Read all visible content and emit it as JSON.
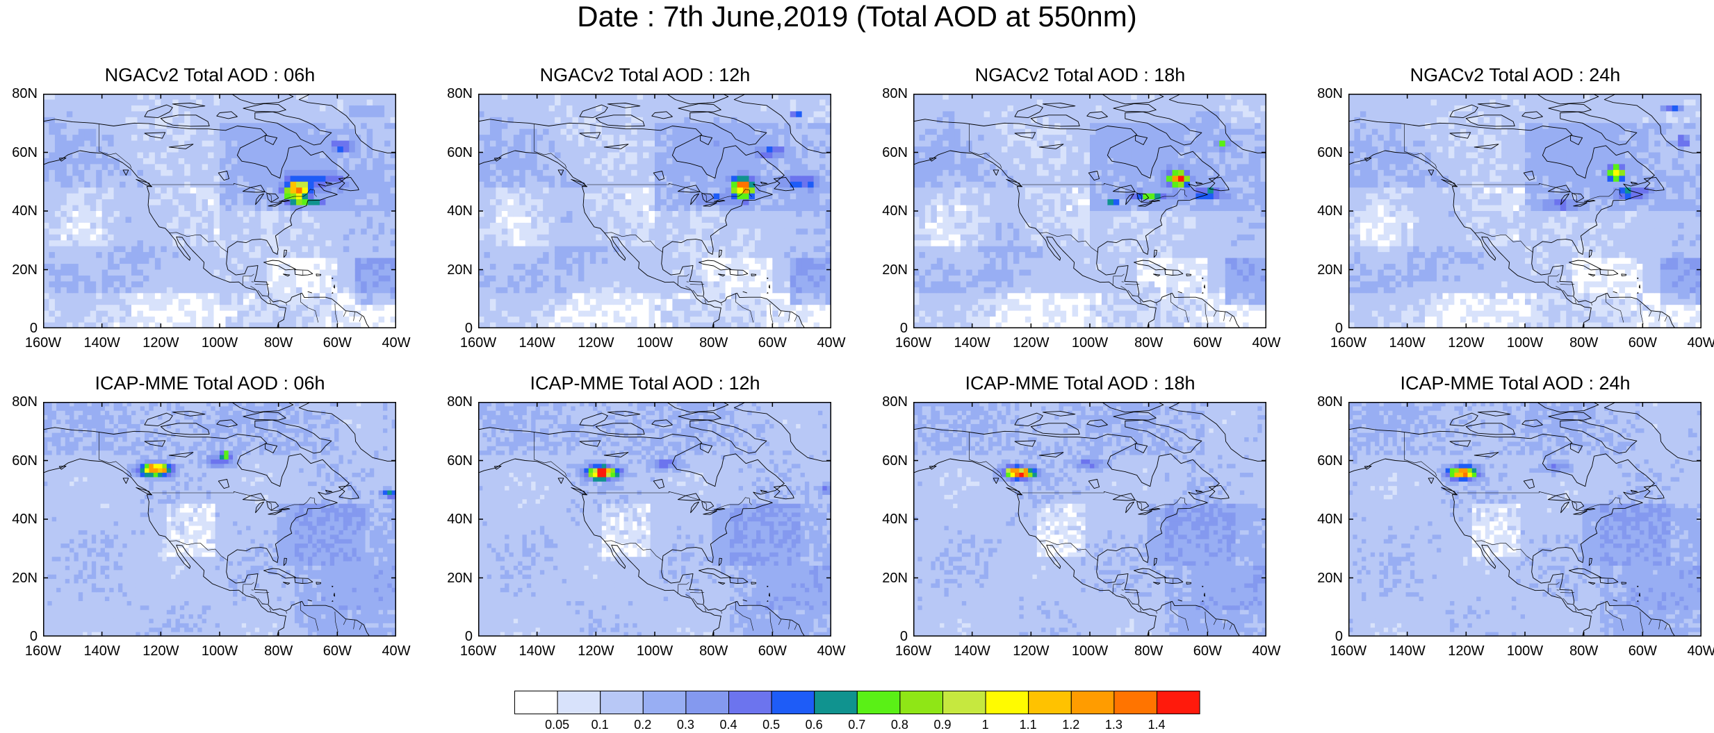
{
  "title": "Date : 7th June,2019 (Total AOD at 550nm)",
  "panels": [
    {
      "title": "NGACv2 Total AOD : 06h",
      "model": "ngac",
      "hour": "06"
    },
    {
      "title": "NGACv2 Total AOD : 12h",
      "model": "ngac",
      "hour": "12"
    },
    {
      "title": "NGACv2 Total AOD : 18h",
      "model": "ngac",
      "hour": "18"
    },
    {
      "title": "NGACv2 Total AOD : 24h",
      "model": "ngac",
      "hour": "24"
    },
    {
      "title": "ICAP-MME Total AOD : 06h",
      "model": "icap",
      "hour": "06"
    },
    {
      "title": "ICAP-MME Total AOD : 12h",
      "model": "icap",
      "hour": "12"
    },
    {
      "title": "ICAP-MME Total AOD : 18h",
      "model": "icap",
      "hour": "18"
    },
    {
      "title": "ICAP-MME Total AOD : 24h",
      "model": "icap",
      "hour": "24"
    }
  ],
  "lat_labels": [
    "80N",
    "60N",
    "40N",
    "20N",
    "0"
  ],
  "lon_labels": [
    "160W",
    "140W",
    "120W",
    "100W",
    "80W",
    "60W",
    "40W"
  ],
  "colorbar": {
    "labels": [
      "0.05",
      "0.1",
      "0.2",
      "0.3",
      "0.4",
      "0.5",
      "0.6",
      "0.7",
      "0.8",
      "0.9",
      "1",
      "1.1",
      "1.2",
      "1.3",
      "1.4"
    ],
    "colors": [
      "#ffffff",
      "#d8e2fb",
      "#b8c8f6",
      "#98aef3",
      "#8499ef",
      "#6c74ee",
      "#1e5cf7",
      "#10938f",
      "#5af016",
      "#8fe616",
      "#c6e83f",
      "#fffb00",
      "#ffc200",
      "#ff9c00",
      "#ff7400",
      "#ff1a0c"
    ]
  },
  "map": {
    "extent": {
      "lon_min": -160,
      "lon_max": -40,
      "lat_min": 0,
      "lat_max": 80
    },
    "ocean_color": "#c6d2f8",
    "land_color": "#b4c4f5",
    "coast_color": "#000000"
  }
}
